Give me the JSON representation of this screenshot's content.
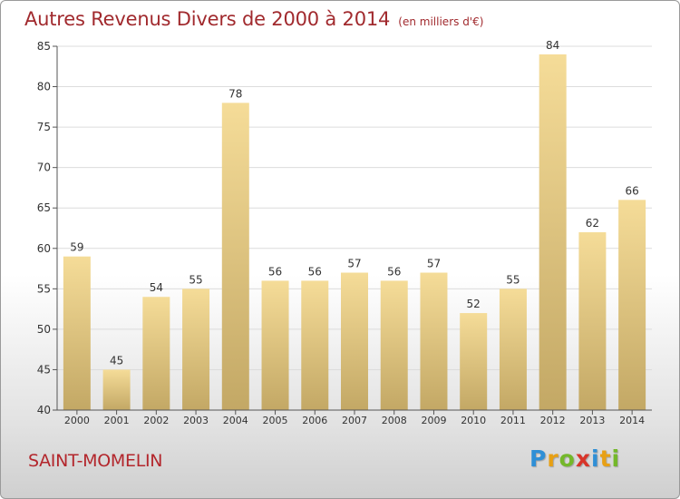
{
  "header": {
    "title": "Autres Revenus Divers de 2000 à 2014",
    "subtitle": "(en milliers d'€)"
  },
  "footer": {
    "location": "SAINT-MOMELIN",
    "logo": {
      "letters": [
        "P",
        "r",
        "o",
        "x",
        "i",
        "t",
        "i"
      ],
      "colors": [
        "#2f8fd6",
        "#e8a014",
        "#74b82a",
        "#d8352a",
        "#2f8fd6",
        "#e8a014",
        "#74b82a"
      ]
    }
  },
  "chart_data": {
    "type": "bar",
    "categories": [
      "2000",
      "2001",
      "2002",
      "2003",
      "2004",
      "2005",
      "2006",
      "2007",
      "2008",
      "2009",
      "2010",
      "2011",
      "2012",
      "2013",
      "2014"
    ],
    "values": [
      59,
      45,
      54,
      55,
      78,
      56,
      56,
      57,
      56,
      57,
      52,
      55,
      84,
      62,
      66
    ],
    "ylim": [
      40,
      85
    ],
    "yticks": [
      40,
      45,
      50,
      55,
      60,
      65,
      70,
      75,
      80,
      85
    ],
    "grid": true,
    "bar_color_top": "#f5dc98",
    "bar_color_bottom": "#c3a865"
  }
}
